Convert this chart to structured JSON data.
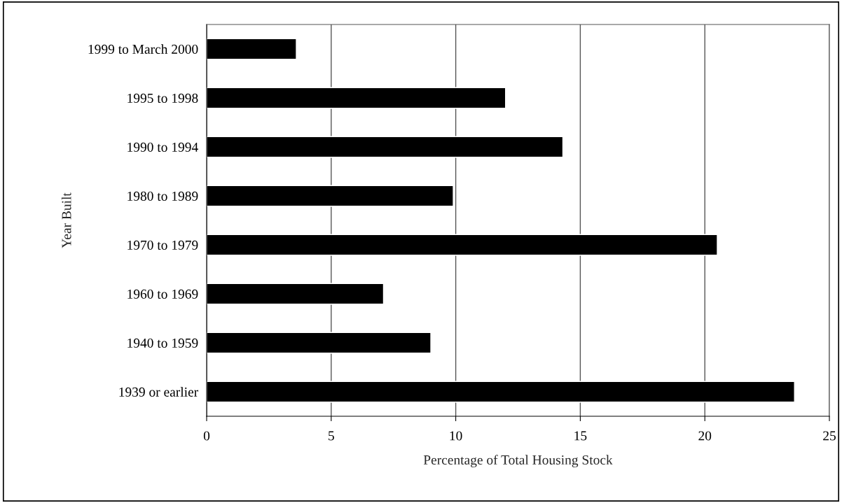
{
  "chart_data": {
    "type": "bar",
    "orientation": "horizontal",
    "xlabel": "Percentage of Total Housing Stock",
    "ylabel": "Year Built",
    "categories": [
      "1999 to March 2000",
      "1995 to 1998",
      "1990 to 1994",
      "1980 to 1989",
      "1970 to 1979",
      "1960 to 1969",
      "1940 to 1959",
      "1939 or earlier"
    ],
    "values": [
      3.6,
      12.0,
      14.3,
      9.9,
      20.5,
      7.1,
      9.0,
      23.6
    ],
    "color": "#000000",
    "xlim": [
      0,
      25
    ],
    "xticks": [
      0,
      5,
      10,
      15,
      20,
      25
    ],
    "grid": "x",
    "legend": false
  }
}
